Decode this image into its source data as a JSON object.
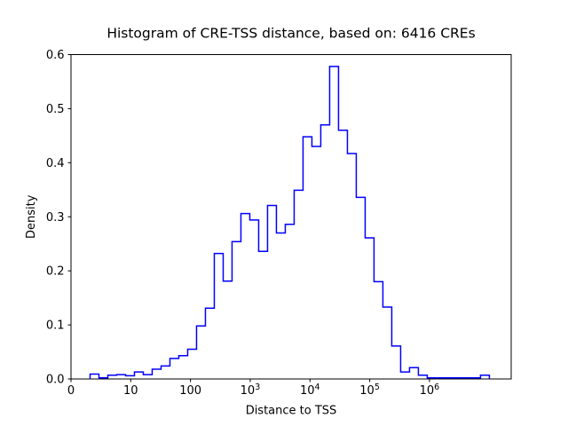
{
  "figure": {
    "title": "Histogram of CRE-TSS distance, based on: 6416 CREs",
    "xlabel": "Distance to TSS",
    "ylabel": "Density"
  },
  "chart_data": {
    "type": "histogram-step",
    "title": "Histogram of CRE-TSS distance, based on: 6416 CREs",
    "xlabel": "Distance to TSS",
    "ylabel": "Density",
    "n_samples_label": "6416 CREs",
    "x_scale": "log10 (symlog-style, leftmost tick labeled 0)",
    "ylim": [
      0,
      0.6
    ],
    "grid": "off",
    "legend": "none",
    "line_color": "#0000ff",
    "axes_color": "#000000",
    "x_ticks": [
      {
        "label": "0",
        "sup": null,
        "log10": 0
      },
      {
        "label": "10",
        "sup": null,
        "log10": 1
      },
      {
        "label": "100",
        "sup": null,
        "log10": 2
      },
      {
        "label": "10",
        "sup": "3",
        "log10": 3
      },
      {
        "label": "10",
        "sup": "4",
        "log10": 4
      },
      {
        "label": "10",
        "sup": "5",
        "log10": 5
      },
      {
        "label": "10",
        "sup": "6",
        "log10": 6
      }
    ],
    "y_ticks": [
      {
        "label": "0.0",
        "value": 0.0
      },
      {
        "label": "0.1",
        "value": 0.1
      },
      {
        "label": "0.2",
        "value": 0.2
      },
      {
        "label": "0.3",
        "value": 0.3
      },
      {
        "label": "0.4",
        "value": 0.4
      },
      {
        "label": "0.5",
        "value": 0.5
      },
      {
        "label": "0.6",
        "value": 0.6
      }
    ],
    "bins": {
      "log10_start": 0.3193,
      "log10_width": 0.14852,
      "densities": [
        0.009,
        0.002,
        0.007,
        0.008,
        0.006,
        0.013,
        0.008,
        0.018,
        0.024,
        0.038,
        0.043,
        0.055,
        0.098,
        0.131,
        0.232,
        0.181,
        0.254,
        0.306,
        0.294,
        0.236,
        0.321,
        0.27,
        0.286,
        0.349,
        0.448,
        0.43,
        0.47,
        0.578,
        0.46,
        0.417,
        0.336,
        0.261,
        0.18,
        0.133,
        0.061,
        0.013,
        0.021,
        0.007,
        0.002,
        0.002,
        0.002,
        0.002,
        0.002,
        0.002,
        0.007
      ]
    },
    "peak": {
      "density": 0.578,
      "log10_x_range": [
        4.33,
        4.48
      ]
    }
  }
}
